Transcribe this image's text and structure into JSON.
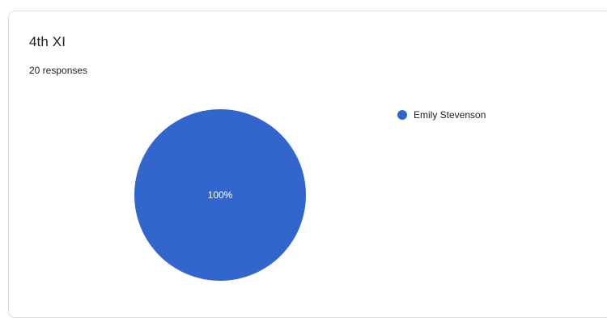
{
  "card": {
    "title": "4th XI",
    "responses": "20 responses"
  },
  "chart_data": {
    "type": "pie",
    "categories": [
      "Emily Stevenson"
    ],
    "values": [
      100
    ],
    "labels": [
      "100%"
    ],
    "colors": [
      "#3366cc"
    ],
    "legend_position": "right"
  }
}
